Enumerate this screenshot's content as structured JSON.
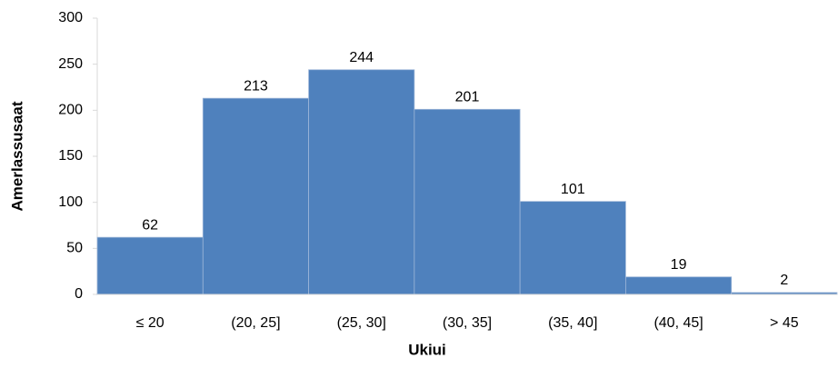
{
  "chart_data": {
    "type": "bar",
    "x_label": "Ukiui",
    "y_label": "Amerlassusaat",
    "categories": [
      "≤ 20",
      "(20, 25]",
      "(25, 30]",
      "(30, 35]",
      "(35, 40]",
      "(40, 45]",
      "> 45"
    ],
    "values": [
      62,
      213,
      244,
      201,
      101,
      19,
      2
    ],
    "color": "#4f81bd",
    "ylim": [
      0,
      300
    ],
    "yticks": [
      0,
      50,
      100,
      150,
      200,
      250,
      300
    ],
    "grid": false
  }
}
